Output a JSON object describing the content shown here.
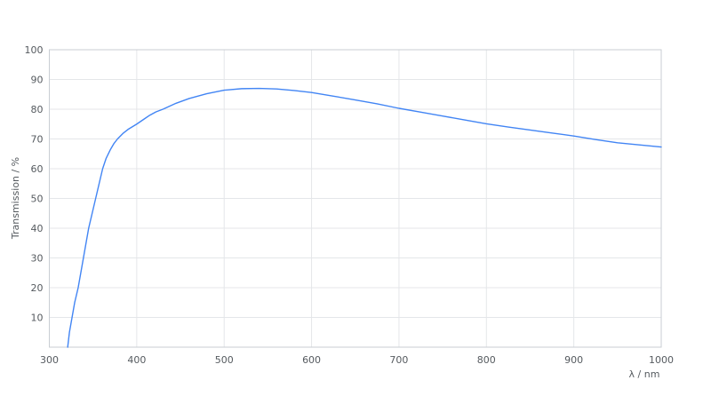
{
  "chart_data": {
    "type": "line",
    "title": "",
    "xlabel": "λ / nm",
    "ylabel": "Transmission / %",
    "xlim": [
      300,
      1000
    ],
    "ylim": [
      0,
      100
    ],
    "x_ticks": [
      300,
      400,
      500,
      600,
      700,
      800,
      900,
      1000
    ],
    "y_ticks": [
      10,
      20,
      30,
      40,
      50,
      60,
      70,
      80,
      90,
      100
    ],
    "grid": true,
    "legend_position": "none",
    "series": [
      {
        "name": "Transmission",
        "x": [
          321,
          323,
          326,
          329,
          333,
          336,
          339,
          342,
          345,
          349,
          353,
          357,
          361,
          365,
          370,
          374,
          378,
          384,
          390,
          400,
          408,
          415,
          422,
          430,
          445,
          460,
          480,
          500,
          520,
          540,
          560,
          580,
          600,
          625,
          650,
          675,
          700,
          725,
          750,
          775,
          800,
          825,
          850,
          875,
          900,
          925,
          950,
          975,
          1000
        ],
        "y": [
          0,
          5,
          10,
          15,
          20,
          25,
          30,
          35,
          40,
          45,
          50,
          55,
          60,
          63.5,
          66.5,
          68.5,
          70,
          71.8,
          73.2,
          75,
          76.6,
          78,
          79.1,
          80,
          82,
          83.6,
          85.2,
          86.4,
          86.9,
          87,
          86.8,
          86.3,
          85.6,
          84.4,
          83.1,
          81.8,
          80.3,
          79,
          77.7,
          76.4,
          75.1,
          74,
          73,
          72,
          71,
          69.8,
          68.7,
          68,
          67.3
        ]
      }
    ],
    "colors": {
      "line": "#4285f4",
      "grid": "#e4e6e9",
      "border": "#c9ced3",
      "label": "#555a5f",
      "background": "#ffffff"
    }
  }
}
